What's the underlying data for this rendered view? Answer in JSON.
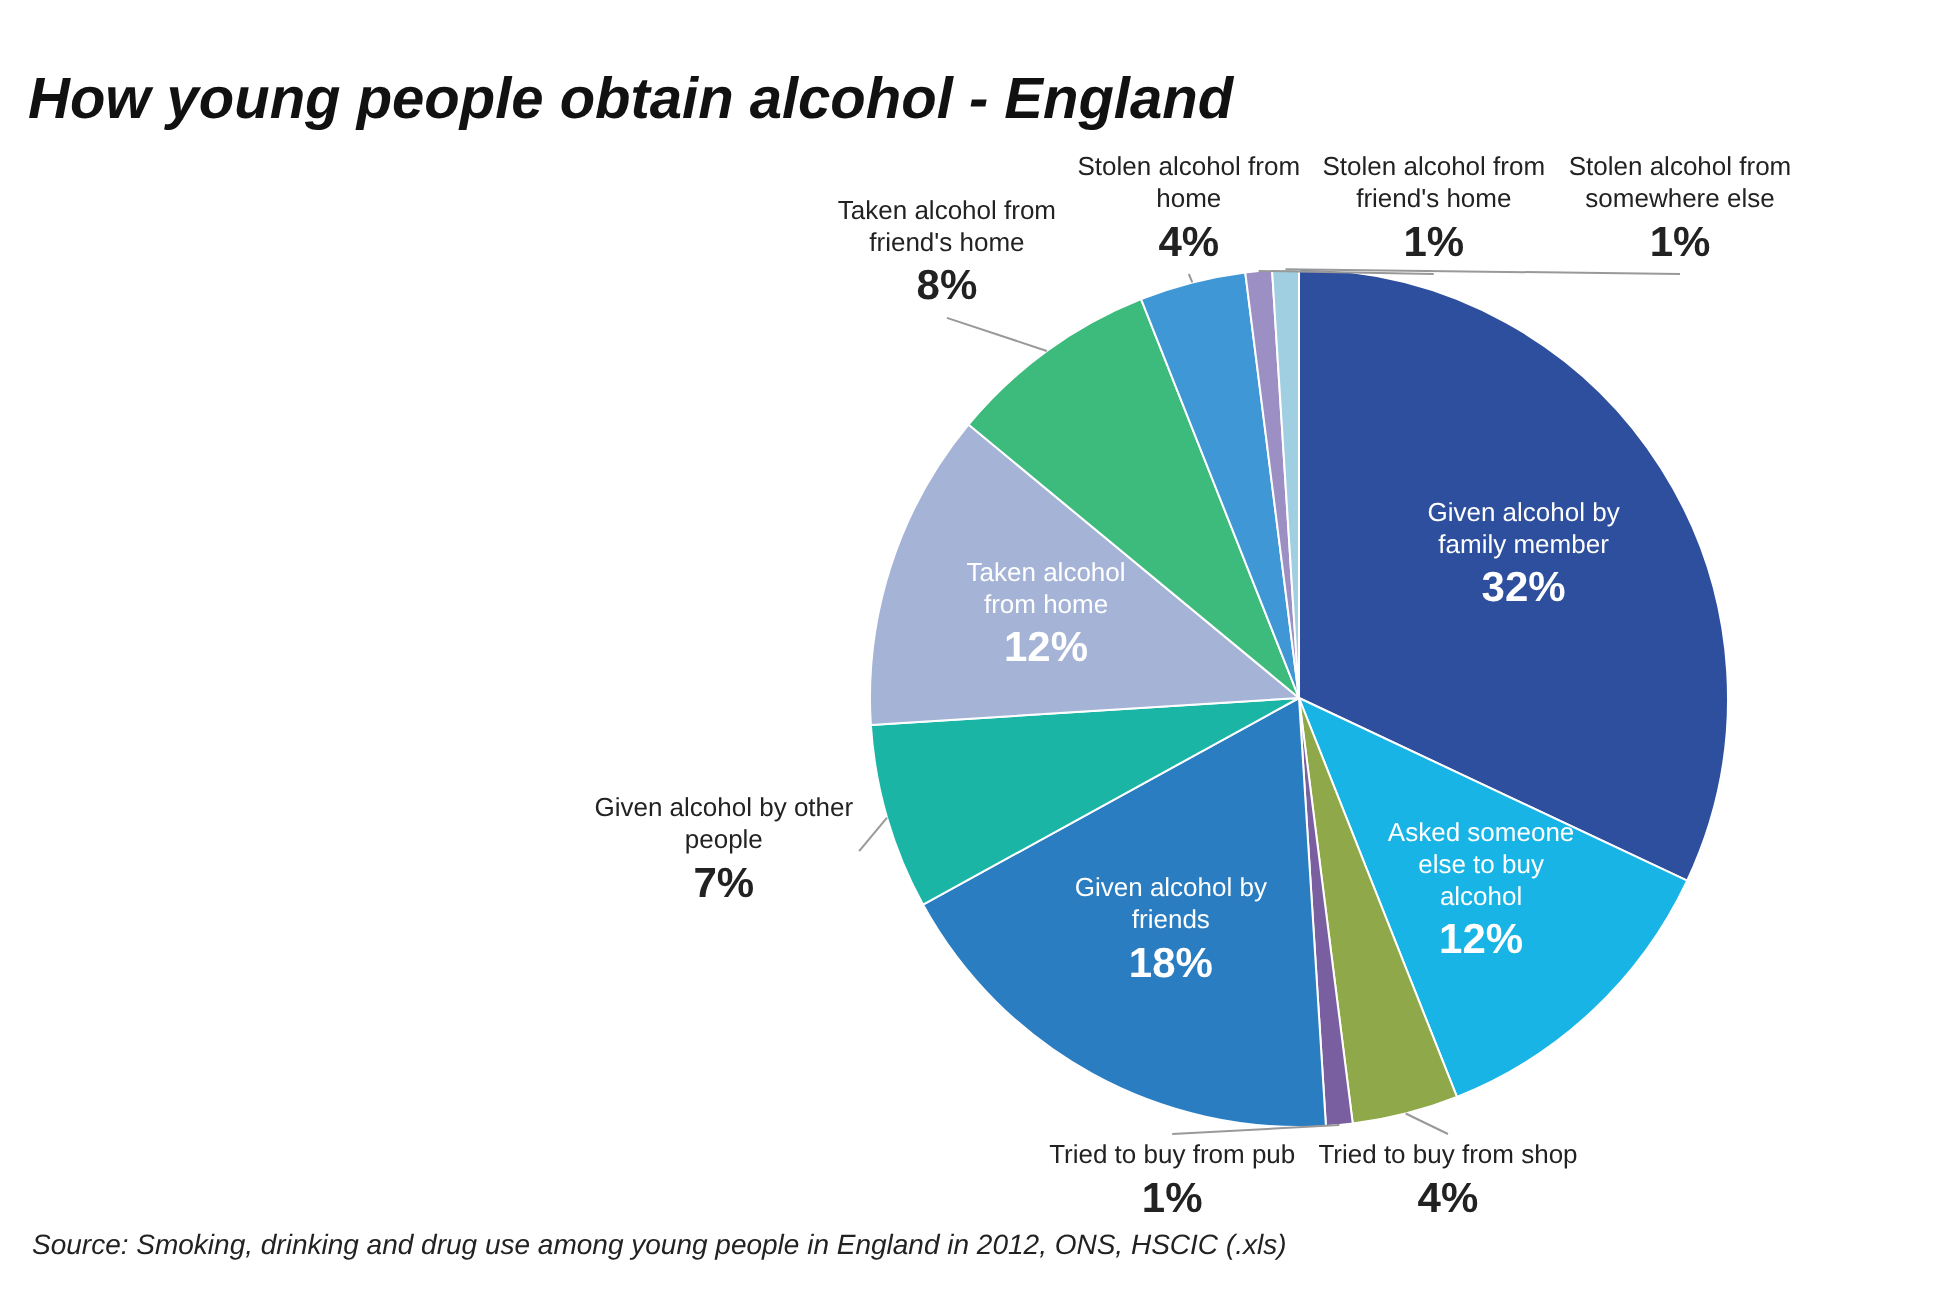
{
  "chart_data": {
    "type": "pie",
    "title": "How young people obtain alcohol - England",
    "categories": [
      "Given alcohol by family member",
      "Asked someone else to buy alcohol",
      "Tried to buy from shop",
      "Tried to buy from pub",
      "Given alcohol by friends",
      "Given alcohol by other people",
      "Taken alcohol from home",
      "Taken alcohol from friend's home",
      "Stolen alcohol from home",
      "Stolen alcohol from friend's home",
      "Stolen alcohol from somewhere else"
    ],
    "values": [
      32,
      12,
      4,
      1,
      18,
      7,
      12,
      8,
      4,
      1,
      1
    ],
    "value_labels": [
      "32%",
      "12%",
      "4%",
      "1%",
      "18%",
      "7%",
      "12%",
      "8%",
      "4%",
      "1%",
      "1%"
    ],
    "colors": [
      "#2e4f9e",
      "#19b4e6",
      "#8fa84a",
      "#7a5fa0",
      "#2a7dc1",
      "#1bb5a5",
      "#a5b4d6",
      "#3dbb7d",
      "#3f97d6",
      "#9c8fc4",
      "#9fcfe0"
    ],
    "annotations": [
      "Source: Smoking, drinking and drug use among young people in England in 2012, ONS, HSCIC (.xls)"
    ]
  }
}
